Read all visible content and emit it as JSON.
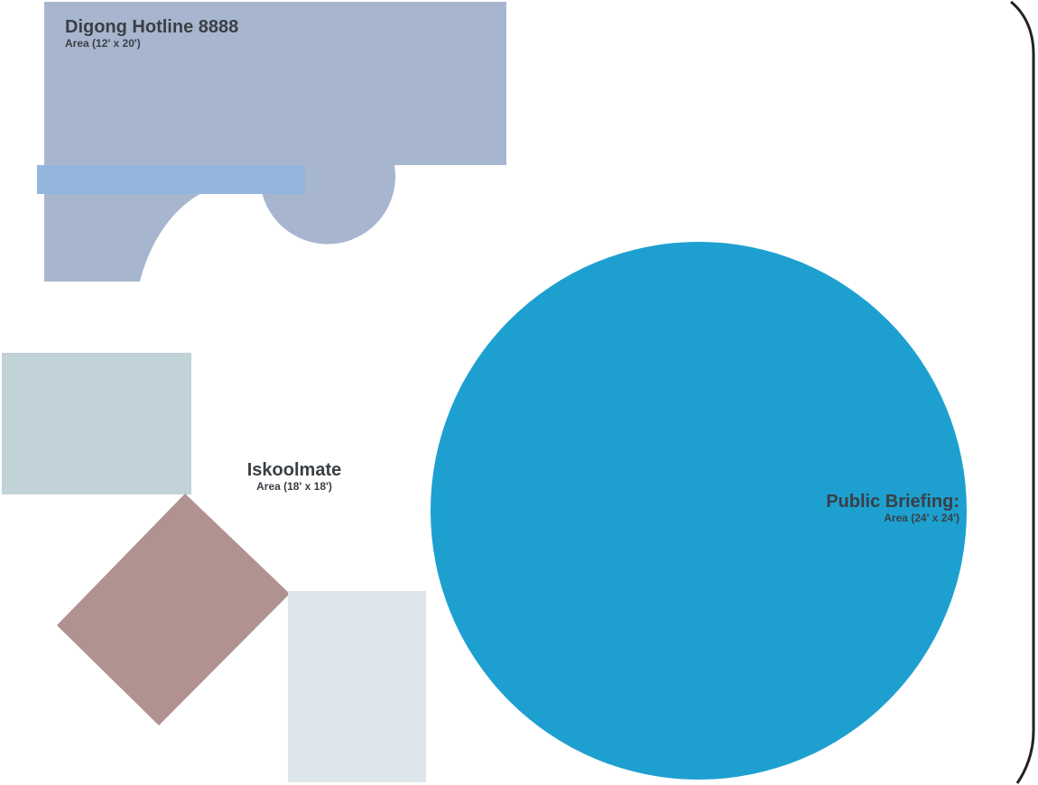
{
  "zones": {
    "digong": {
      "name": "Digong Hotline 8888",
      "area": "Area (12' x 20')"
    },
    "iskoolmate": {
      "name": "Iskoolmate",
      "area": "Area (18' x 18')"
    },
    "public_briefing": {
      "name": "Public Briefing:",
      "area": "Area (24' x 24')"
    }
  },
  "colors": {
    "digong_booth": "#a7b6ce",
    "digong_bar": "#93b4dc",
    "iskool_top_panel": "#c1d2d8",
    "iskool_diamond": "#b09291",
    "iskool_bottom_panel": "#dce6ea",
    "briefing_circle": "#1da0d0",
    "frame_line": "#222222"
  }
}
